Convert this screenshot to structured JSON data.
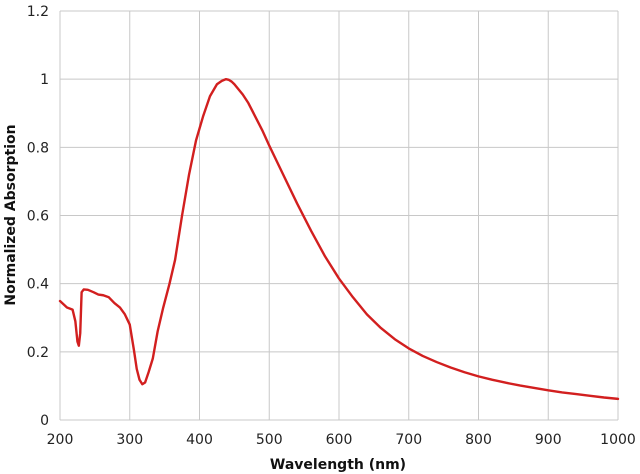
{
  "chart_data": {
    "type": "line",
    "title": "",
    "xlabel": "Wavelength (nm)",
    "ylabel": "Normalized Absorption",
    "xlim": [
      200,
      1000
    ],
    "ylim": [
      0,
      1.2
    ],
    "grid": true,
    "x_ticks": [
      200,
      300,
      400,
      500,
      600,
      700,
      800,
      900,
      1000
    ],
    "x_tick_labels": [
      "200",
      "300",
      "400",
      "500",
      "600",
      "700",
      "800",
      "900",
      "1000"
    ],
    "y_ticks": [
      0,
      0.2,
      0.4,
      0.6,
      0.8,
      1,
      1.2
    ],
    "y_tick_labels": [
      "0",
      "0.2",
      "0.4",
      "0.6",
      "0.8",
      "1",
      "1.2"
    ],
    "series": [
      {
        "color": "#d21f1f",
        "x": [
          200,
          210,
          218,
          222,
          225,
          227,
          229,
          231,
          234,
          240,
          248,
          255,
          262,
          270,
          278,
          286,
          293,
          300,
          306,
          310,
          314,
          318,
          322,
          327,
          333,
          340,
          348,
          357,
          365,
          375,
          385,
          395,
          405,
          415,
          425,
          432,
          438,
          442,
          446,
          450,
          456,
          462,
          470,
          480,
          490,
          500,
          520,
          540,
          560,
          580,
          600,
          620,
          640,
          660,
          680,
          700,
          720,
          740,
          760,
          780,
          800,
          820,
          840,
          860,
          880,
          900,
          920,
          940,
          960,
          980,
          1000
        ],
        "y": [
          0.349,
          0.33,
          0.324,
          0.29,
          0.23,
          0.218,
          0.255,
          0.375,
          0.383,
          0.382,
          0.375,
          0.368,
          0.366,
          0.36,
          0.343,
          0.33,
          0.31,
          0.28,
          0.205,
          0.15,
          0.118,
          0.105,
          0.11,
          0.14,
          0.18,
          0.26,
          0.33,
          0.4,
          0.47,
          0.6,
          0.72,
          0.82,
          0.89,
          0.95,
          0.985,
          0.995,
          1.0,
          0.998,
          0.993,
          0.985,
          0.97,
          0.955,
          0.93,
          0.89,
          0.85,
          0.805,
          0.72,
          0.635,
          0.555,
          0.48,
          0.415,
          0.36,
          0.31,
          0.27,
          0.237,
          0.21,
          0.188,
          0.17,
          0.154,
          0.14,
          0.128,
          0.118,
          0.109,
          0.101,
          0.094,
          0.087,
          0.081,
          0.076,
          0.071,
          0.066,
          0.062
        ]
      }
    ]
  }
}
